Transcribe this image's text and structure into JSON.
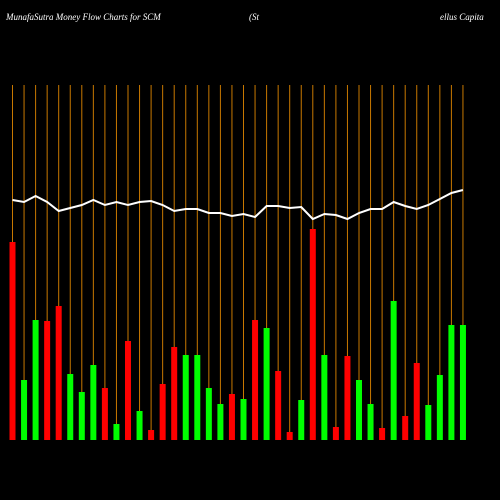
{
  "chart_data": {
    "type": "bar",
    "title": "MunafaSutra  Money Flow  Charts for SCM",
    "subtitle": "(St",
    "subtitle_right": "ellus Capita",
    "ylim": [
      0,
      355
    ],
    "grid_color": "#c87800",
    "values": [
      198,
      60,
      120,
      119,
      134,
      66,
      48,
      75,
      52,
      16,
      99,
      29,
      10,
      56,
      93,
      85,
      85,
      52,
      36,
      46,
      41,
      120,
      112,
      69,
      8,
      40,
      211,
      85,
      13,
      84,
      60,
      36,
      12,
      139,
      24,
      77,
      35,
      65,
      115,
      115
    ],
    "colors": [
      "#ff0000",
      "#00ff00",
      "#00ff00",
      "#ff0000",
      "#ff0000",
      "#00ff00",
      "#00ff00",
      "#00ff00",
      "#ff0000",
      "#00ff00",
      "#ff0000",
      "#00ff00",
      "#ff0000",
      "#ff0000",
      "#ff0000",
      "#00ff00",
      "#00ff00",
      "#00ff00",
      "#00ff00",
      "#ff0000",
      "#00ff00",
      "#ff0000",
      "#00ff00",
      "#ff0000",
      "#ff0000",
      "#00ff00",
      "#ff0000",
      "#00ff00",
      "#ff0000",
      "#ff0000",
      "#00ff00",
      "#00ff00",
      "#ff0000",
      "#00ff00",
      "#ff0000",
      "#ff0000",
      "#00ff00",
      "#00ff00",
      "#00ff00",
      "#00ff00"
    ],
    "line": {
      "color": "#ffffff",
      "values": [
        240,
        238,
        244,
        238,
        229,
        232,
        235,
        240,
        235,
        238,
        235,
        238,
        239,
        235,
        229,
        231,
        231,
        227,
        227,
        224,
        226,
        223,
        234,
        234,
        232,
        233,
        221,
        226,
        225,
        221,
        227,
        231,
        231,
        238,
        234,
        231,
        235,
        241,
        247,
        250
      ]
    }
  }
}
